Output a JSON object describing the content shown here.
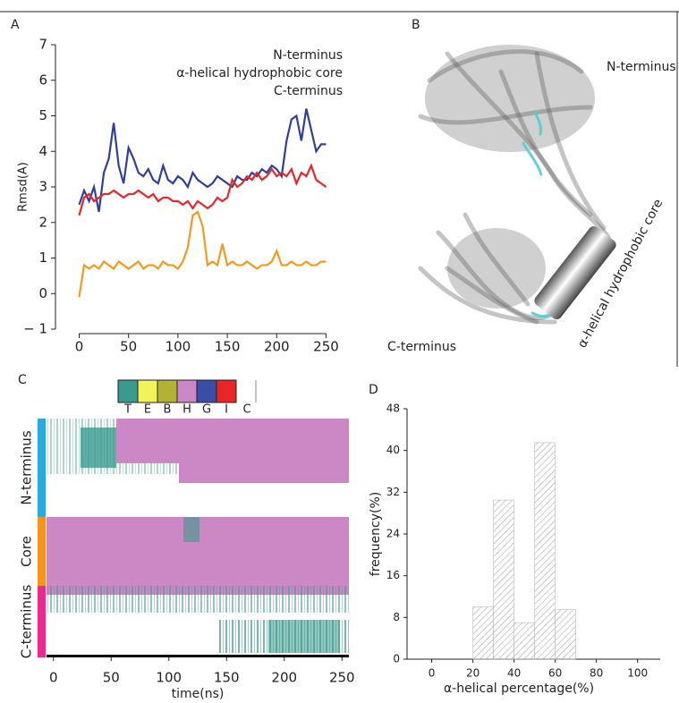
{
  "panels": [
    "A",
    "B",
    "C",
    "D"
  ],
  "structure_labels": {
    "n_terminus": "N-terminus",
    "core": "α-helical hydrophobic core",
    "c_terminus": "C-terminus"
  },
  "chart_data": [
    {
      "type": "line",
      "ylabel": "Rmsd(A)",
      "x": [
        0,
        5,
        10,
        15,
        20,
        25,
        30,
        35,
        40,
        45,
        50,
        55,
        60,
        65,
        70,
        75,
        80,
        85,
        90,
        95,
        100,
        105,
        110,
        115,
        120,
        125,
        130,
        135,
        140,
        145,
        150,
        155,
        160,
        165,
        170,
        175,
        180,
        185,
        190,
        195,
        200,
        205,
        210,
        215,
        220,
        225,
        230,
        235,
        240,
        245,
        250
      ],
      "xlim": [
        -24,
        255
      ],
      "xticks": [
        0,
        50,
        100,
        150,
        200,
        250
      ],
      "ylim": [
        -1,
        7
      ],
      "yticks": [
        {
          "value": -1,
          "label": "− 1"
        },
        0,
        1,
        2,
        3,
        4,
        5,
        6,
        7
      ],
      "series": [
        {
          "name": "N-terminus",
          "color": "#2e3f9c",
          "values": [
            2.5,
            2.9,
            2.6,
            3.0,
            2.3,
            3.4,
            3.8,
            4.8,
            3.6,
            3.1,
            4.1,
            3.8,
            3.4,
            3.3,
            3.5,
            3.2,
            3.1,
            3.6,
            3.2,
            3.1,
            3.3,
            3.2,
            3.0,
            3.4,
            3.2,
            3.1,
            3.0,
            3.1,
            3.3,
            3.2,
            3.1,
            3.0,
            3.3,
            3.2,
            3.2,
            3.4,
            3.3,
            3.5,
            3.4,
            3.6,
            3.5,
            3.3,
            4.3,
            4.9,
            5.0,
            4.3,
            5.2,
            4.6,
            4.0,
            4.2,
            4.2
          ]
        },
        {
          "name": "α-helical hydrophobic core",
          "color": "#f39a1d",
          "values": [
            -0.1,
            0.8,
            0.7,
            0.8,
            0.7,
            0.9,
            0.8,
            0.7,
            0.9,
            0.8,
            0.7,
            0.8,
            0.9,
            0.7,
            0.8,
            0.8,
            0.7,
            0.9,
            0.8,
            0.8,
            0.7,
            0.9,
            1.3,
            2.2,
            2.3,
            1.9,
            0.8,
            0.9,
            0.8,
            1.4,
            0.8,
            0.9,
            0.8,
            0.8,
            0.9,
            0.8,
            0.7,
            0.8,
            0.8,
            0.9,
            1.2,
            0.8,
            0.8,
            0.9,
            0.8,
            0.8,
            0.9,
            0.8,
            0.8,
            0.9,
            0.9
          ]
        },
        {
          "name": "C-terminus",
          "color": "#e8262a",
          "values": [
            2.2,
            2.7,
            2.8,
            2.6,
            2.7,
            2.8,
            2.8,
            2.9,
            2.8,
            2.7,
            2.8,
            2.8,
            2.9,
            2.8,
            2.7,
            2.8,
            2.6,
            2.7,
            2.7,
            2.6,
            2.6,
            2.5,
            2.6,
            2.4,
            2.6,
            2.5,
            2.4,
            2.5,
            2.7,
            2.6,
            2.7,
            3.2,
            3.0,
            3.1,
            3.3,
            3.2,
            3.4,
            3.2,
            3.3,
            3.5,
            3.3,
            3.4,
            3.3,
            3.5,
            3.1,
            3.4,
            3.3,
            3.6,
            3.2,
            3.1,
            3.0
          ]
        }
      ]
    },
    {
      "type": "heatmap",
      "xlabel": "time(ns)",
      "xlim": [
        -6,
        256
      ],
      "xticks": [
        0,
        50,
        100,
        150,
        200,
        250
      ],
      "legend": [
        "T",
        "E",
        "B",
        "H",
        "G",
        "I",
        "C"
      ],
      "legend_colors": [
        "#3a9a8e",
        "#f2f25a",
        "#b2b334",
        "#cc88c4",
        "#3a4ea8",
        "#e8262a",
        "#ffffff"
      ],
      "rows": [
        "N-terminus",
        "Core",
        "C-terminus"
      ],
      "row_colors": [
        "#29abe2",
        "#f7941d",
        "#ec2a8b"
      ]
    },
    {
      "type": "histogram",
      "xlabel": "α-helical percentage(%)",
      "ylabel": "frequency(%)",
      "bins": [
        20,
        30,
        40,
        50,
        60,
        70
      ],
      "values": [
        10,
        30.5,
        7,
        41.5,
        9.5
      ],
      "xlim": [
        -12,
        111
      ],
      "xticks": [
        0,
        20,
        40,
        60,
        80,
        100
      ],
      "ylim": [
        0,
        48
      ],
      "yticks": [
        0,
        8,
        16,
        24,
        32,
        40,
        48
      ]
    }
  ]
}
